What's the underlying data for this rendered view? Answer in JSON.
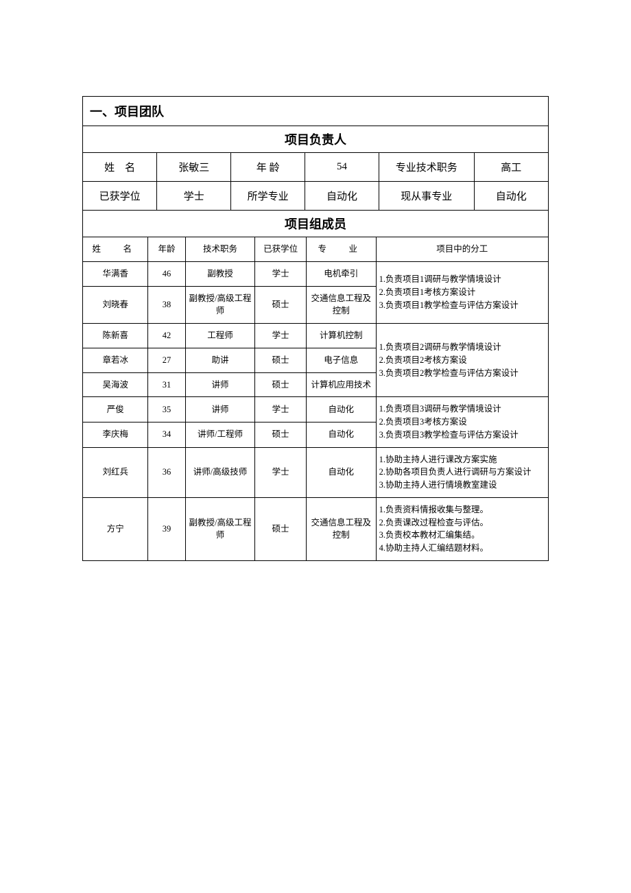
{
  "section_title": "一、项目团队",
  "leader_title": "项目负责人",
  "leader": {
    "name_label": "姓　名",
    "name": "张敏三",
    "age_label": "年 龄",
    "age": "54",
    "title_label": "专业技术职务",
    "title": "高工",
    "degree_label": "已获学位",
    "degree": "学士",
    "major_label": "所学专业",
    "major": "自动化",
    "current_label": "现从事专业",
    "current": "自动化"
  },
  "members_title": "项目组成员",
  "members_header": {
    "name": "姓　名",
    "age": "年龄",
    "title": "技术职务",
    "degree": "已获学位",
    "major": "专　业",
    "duties": "项目中的分工"
  },
  "members": [
    {
      "name": "华满香",
      "age": "46",
      "title": "副教授",
      "degree": "学士",
      "major": "电机牵引"
    },
    {
      "name": "刘晓春",
      "age": "38",
      "title": "副教授/高级工程师",
      "degree": "硕士",
      "major": "交通信息工程及控制"
    },
    {
      "name": "陈新喜",
      "age": "42",
      "title": "工程师",
      "degree": "学士",
      "major": "计算机控制"
    },
    {
      "name": "章若冰",
      "age": "27",
      "title": "助讲",
      "degree": "硕士",
      "major": "电子信息"
    },
    {
      "name": "吴海波",
      "age": "31",
      "title": "讲师",
      "degree": "硕士",
      "major": "计算机应用技术"
    },
    {
      "name": "严俊",
      "age": "35",
      "title": "讲师",
      "degree": "学士",
      "major": "自动化"
    },
    {
      "name": "李庆梅",
      "age": "34",
      "title": "讲师/工程师",
      "degree": "硕士",
      "major": "自动化"
    },
    {
      "name": "刘红兵",
      "age": "36",
      "title": "讲师/高级技师",
      "degree": "学士",
      "major": "自动化"
    },
    {
      "name": "方宁",
      "age": "39",
      "title": "副教授/高级工程师",
      "degree": "硕士",
      "major": "交通信息工程及控制"
    }
  ],
  "duties": {
    "g1": "1.负责项目1调研与教学情境设计\n2.负责项目1考核方案设计\n3.负责项目1教学检查与评估方案设计",
    "g2": "1.负责项目2调研与教学情境设计\n2.负责项目2考核方案设\n3.负责项目2教学检查与评估方案设计",
    "g3": "1.负责项目3调研与教学情境设计\n2.负责项目3考核方案设\n3.负责项目3教学检查与评估方案设计",
    "g4": "1.协助主持人进行课改方案实施\n2.协助各项目负责人进行调研与方案设计\n3.协助主持人进行情境教室建设",
    "g5": "1.负责资料情报收集与整理。\n2.负责课改过程检查与评估。\n3.负责校本教材汇编集结。\n4.协助主持人汇编结题材料。"
  },
  "colors": {
    "border": "#000000",
    "background": "#ffffff",
    "text": "#000000"
  }
}
